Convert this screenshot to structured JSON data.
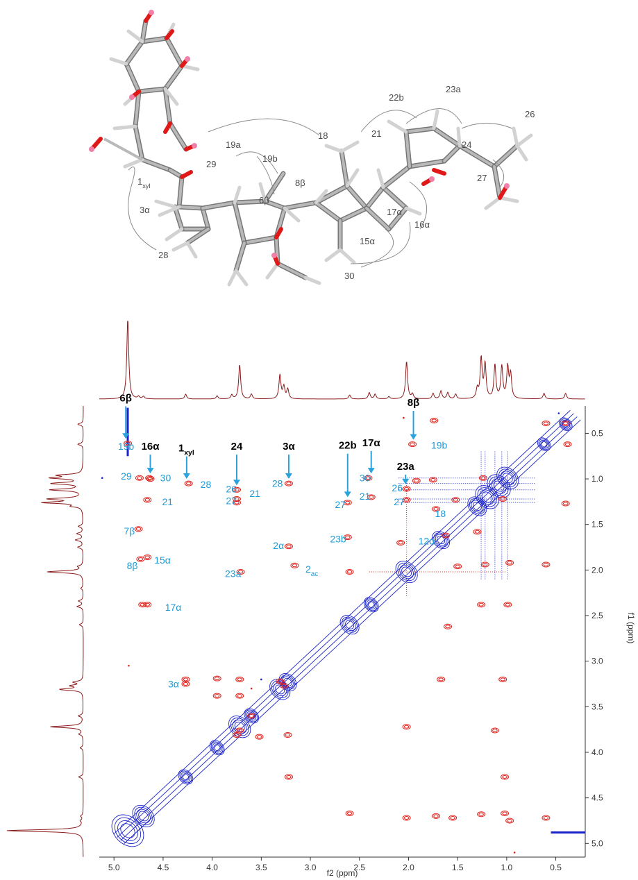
{
  "chart_data": {
    "type": "2D NMR NOESY/ROESY contour spectrum with 1D projections",
    "xlabel": "f2 (ppm)",
    "ylabel": "f1 (ppm)",
    "xlim": [
      5.15,
      0.2
    ],
    "ylim": [
      0.2,
      5.15
    ],
    "x_ticks": [
      "5.0",
      "4.5",
      "4.0",
      "3.5",
      "3.0",
      "2.5",
      "2.0",
      "1.5",
      "1.0",
      "0.5"
    ],
    "x_tick_values": [
      5.0,
      4.5,
      4.0,
      3.5,
      3.0,
      2.5,
      2.0,
      1.5,
      1.0,
      0.5
    ],
    "y_ticks": [
      "0.5",
      "1.0",
      "1.5",
      "2.0",
      "2.5",
      "3.0",
      "3.5",
      "4.0",
      "4.5",
      "5.0"
    ],
    "y_tick_values": [
      0.5,
      1.0,
      1.5,
      2.0,
      2.5,
      3.0,
      3.5,
      4.0,
      4.5,
      5.0
    ],
    "colors": {
      "positive": "#e0221c",
      "negative": "#1a23c8",
      "trace": "#8b1a1a",
      "annotation": "#1e9bd7",
      "arrow": "#2aa3dc",
      "molecule_label": "#4a4a4a"
    },
    "proton_spectrum_peaks": [
      {
        "ppm": 4.86,
        "h": 1.0
      },
      {
        "ppm": 4.75,
        "h": 0.03
      },
      {
        "ppm": 4.7,
        "h": 0.03
      },
      {
        "ppm": 4.27,
        "h": 0.06
      },
      {
        "ppm": 3.95,
        "h": 0.04
      },
      {
        "ppm": 3.8,
        "h": 0.05
      },
      {
        "ppm": 3.72,
        "h": 0.43
      },
      {
        "ppm": 3.6,
        "h": 0.06
      },
      {
        "ppm": 3.31,
        "h": 0.3
      },
      {
        "ppm": 3.27,
        "h": 0.15
      },
      {
        "ppm": 3.23,
        "h": 0.12
      },
      {
        "ppm": 2.6,
        "h": 0.05
      },
      {
        "ppm": 2.4,
        "h": 0.08
      },
      {
        "ppm": 2.34,
        "h": 0.06
      },
      {
        "ppm": 2.2,
        "h": 0.03
      },
      {
        "ppm": 2.02,
        "h": 0.47
      },
      {
        "ppm": 1.96,
        "h": 0.06
      },
      {
        "ppm": 1.75,
        "h": 0.07
      },
      {
        "ppm": 1.67,
        "h": 0.1
      },
      {
        "ppm": 1.6,
        "h": 0.08
      },
      {
        "ppm": 1.52,
        "h": 0.06
      },
      {
        "ppm": 1.3,
        "h": 0.12
      },
      {
        "ppm": 1.26,
        "h": 0.5
      },
      {
        "ppm": 1.22,
        "h": 0.43
      },
      {
        "ppm": 1.12,
        "h": 0.42
      },
      {
        "ppm": 1.05,
        "h": 0.4
      },
      {
        "ppm": 0.99,
        "h": 0.39
      },
      {
        "ppm": 0.96,
        "h": 0.3
      },
      {
        "ppm": 0.62,
        "h": 0.07
      },
      {
        "ppm": 0.4,
        "h": 0.07
      }
    ],
    "cross_peaks": [
      {
        "x": 4.64,
        "y": 0.99
      },
      {
        "x": 4.74,
        "y": 0.99
      },
      {
        "x": 4.63,
        "y": 1.0
      },
      {
        "x": 4.66,
        "y": 1.23
      },
      {
        "x": 4.75,
        "y": 1.55
      },
      {
        "x": 4.66,
        "y": 1.86
      },
      {
        "x": 4.73,
        "y": 1.88
      },
      {
        "x": 4.66,
        "y": 2.38
      },
      {
        "x": 4.71,
        "y": 2.38
      },
      {
        "x": 4.86,
        "y": 0.61
      },
      {
        "x": 4.24,
        "y": 1.05
      },
      {
        "x": 3.75,
        "y": 1.12
      },
      {
        "x": 3.75,
        "y": 1.22
      },
      {
        "x": 3.75,
        "y": 1.26
      },
      {
        "x": 3.71,
        "y": 2.02
      },
      {
        "x": 3.22,
        "y": 1.05
      },
      {
        "x": 3.22,
        "y": 1.74
      },
      {
        "x": 3.16,
        "y": 1.95
      },
      {
        "x": 4.27,
        "y": 3.2
      },
      {
        "x": 4.27,
        "y": 3.25
      },
      {
        "x": 3.95,
        "y": 3.19
      },
      {
        "x": 3.95,
        "y": 3.38
      },
      {
        "x": 3.72,
        "y": 3.2
      },
      {
        "x": 3.72,
        "y": 3.38
      },
      {
        "x": 3.6,
        "y": 3.6
      },
      {
        "x": 3.52,
        "y": 3.83
      },
      {
        "x": 3.31,
        "y": 3.22
      },
      {
        "x": 3.27,
        "y": 3.27
      },
      {
        "x": 3.23,
        "y": 3.81
      },
      {
        "x": 3.22,
        "y": 4.27
      },
      {
        "x": 2.62,
        "y": 1.26
      },
      {
        "x": 2.62,
        "y": 1.64
      },
      {
        "x": 2.6,
        "y": 2.02
      },
      {
        "x": 2.41,
        "y": 0.99
      },
      {
        "x": 2.38,
        "y": 1.2
      },
      {
        "x": 2.08,
        "y": 1.7
      },
      {
        "x": 2.6,
        "y": 4.67
      },
      {
        "x": 2.02,
        "y": 1.11
      },
      {
        "x": 2.02,
        "y": 1.23
      },
      {
        "x": 2.02,
        "y": 3.72
      },
      {
        "x": 1.96,
        "y": 0.62
      },
      {
        "x": 1.92,
        "y": 1.02
      },
      {
        "x": 1.75,
        "y": 1.01
      },
      {
        "x": 1.72,
        "y": 1.33
      },
      {
        "x": 1.67,
        "y": 3.2
      },
      {
        "x": 1.62,
        "y": 1.62
      },
      {
        "x": 1.6,
        "y": 2.62
      },
      {
        "x": 1.52,
        "y": 1.23
      },
      {
        "x": 1.5,
        "y": 1.96
      },
      {
        "x": 1.3,
        "y": 1.58
      },
      {
        "x": 1.26,
        "y": 2.38
      },
      {
        "x": 1.22,
        "y": 1.94
      },
      {
        "x": 1.12,
        "y": 3.76
      },
      {
        "x": 1.04,
        "y": 3.2
      },
      {
        "x": 1.02,
        "y": 4.27
      },
      {
        "x": 0.99,
        "y": 2.38
      },
      {
        "x": 0.97,
        "y": 1.92
      },
      {
        "x": 0.6,
        "y": 1.94
      },
      {
        "x": 0.4,
        "y": 0.39
      },
      {
        "x": 0.38,
        "y": 0.62
      },
      {
        "x": 0.4,
        "y": 1.27
      },
      {
        "x": 0.6,
        "y": 0.39
      },
      {
        "x": 1.74,
        "y": 0.36
      },
      {
        "x": 1.02,
        "y": 4.67
      },
      {
        "x": 2.02,
        "y": 4.72
      },
      {
        "x": 1.55,
        "y": 4.72
      },
      {
        "x": 1.72,
        "y": 4.7
      },
      {
        "x": 1.26,
        "y": 4.68
      },
      {
        "x": 0.6,
        "y": 4.72
      },
      {
        "x": 0.97,
        "y": 4.75
      },
      {
        "x": 3.75,
        "y": 3.81
      },
      {
        "x": 3.72,
        "y": 3.76
      },
      {
        "x": 1.24,
        "y": 0.99
      },
      {
        "x": 1.04,
        "y": 1.22
      }
    ],
    "diagonal_peaks": [
      {
        "ppm": 4.86,
        "s": 2.2
      },
      {
        "ppm": 4.7,
        "s": 1.5
      },
      {
        "ppm": 4.27,
        "s": 1.0
      },
      {
        "ppm": 3.95,
        "s": 1.0
      },
      {
        "ppm": 3.72,
        "s": 1.5
      },
      {
        "ppm": 3.6,
        "s": 1.0
      },
      {
        "ppm": 3.31,
        "s": 1.4
      },
      {
        "ppm": 3.23,
        "s": 1.2
      },
      {
        "ppm": 2.6,
        "s": 1.3
      },
      {
        "ppm": 2.38,
        "s": 1.0
      },
      {
        "ppm": 2.02,
        "s": 1.5
      },
      {
        "ppm": 1.67,
        "s": 1.2
      },
      {
        "ppm": 1.3,
        "s": 1.3
      },
      {
        "ppm": 1.2,
        "s": 1.6
      },
      {
        "ppm": 1.08,
        "s": 1.6
      },
      {
        "ppm": 0.99,
        "s": 1.5
      },
      {
        "ppm": 0.62,
        "s": 0.9
      },
      {
        "ppm": 0.4,
        "s": 0.9
      }
    ],
    "peak_labels": [
      {
        "text": "19b",
        "x": 4.96,
        "y": 0.64
      },
      {
        "text": "29",
        "x": 4.93,
        "y": 0.97
      },
      {
        "text": "30",
        "x": 4.53,
        "y": 0.99
      },
      {
        "text": "21",
        "x": 4.51,
        "y": 1.25
      },
      {
        "text": "7β",
        "x": 4.9,
        "y": 1.57
      },
      {
        "text": "15α",
        "x": 4.59,
        "y": 1.89
      },
      {
        "text": "8β",
        "x": 4.87,
        "y": 1.95
      },
      {
        "text": "17α",
        "x": 4.48,
        "y": 2.41
      },
      {
        "text": "28",
        "x": 4.12,
        "y": 1.06
      },
      {
        "text": "26",
        "x": 3.86,
        "y": 1.11
      },
      {
        "text": "21",
        "x": 3.62,
        "y": 1.16
      },
      {
        "text": "27",
        "x": 3.86,
        "y": 1.24
      },
      {
        "text": "23a",
        "x": 3.87,
        "y": 2.04
      },
      {
        "text": "28",
        "x": 3.39,
        "y": 1.05
      },
      {
        "text": "2α",
        "x": 3.38,
        "y": 1.73
      },
      {
        "text": "3α",
        "x": 4.45,
        "y": 3.25
      },
      {
        "text": "27",
        "x": 2.75,
        "y": 1.28
      },
      {
        "text": "23b",
        "x": 2.8,
        "y": 1.66
      },
      {
        "text": "30",
        "x": 2.5,
        "y": 0.99
      },
      {
        "text": "21",
        "x": 2.5,
        "y": 1.19
      },
      {
        "text": "12α",
        "x": 1.9,
        "y": 1.68
      },
      {
        "text": "26",
        "x": 2.17,
        "y": 1.1
      },
      {
        "text": "27",
        "x": 2.15,
        "y": 1.25
      },
      {
        "text": "18",
        "x": 1.73,
        "y": 1.38
      },
      {
        "text": "19b",
        "x": 1.77,
        "y": 0.63
      }
    ],
    "subscript_labels": [
      {
        "text": "2",
        "sub": "ac",
        "x": 3.05,
        "y": 1.99
      }
    ],
    "arrow_labels": [
      {
        "text": "6β",
        "x": 4.88,
        "y_label": 0.15,
        "y_to": 0.56
      },
      {
        "text": "16α",
        "x": 4.63,
        "y_label": 0.68,
        "y_to": 0.94
      },
      {
        "text": "24",
        "x": 3.75,
        "y_label": 0.68,
        "y_to": 1.07
      },
      {
        "text": "3α",
        "x": 3.22,
        "y_label": 0.68,
        "y_to": 1.0
      },
      {
        "text": "22b",
        "x": 2.62,
        "y_label": 0.67,
        "y_to": 1.2
      },
      {
        "text": "17α",
        "x": 2.38,
        "y_label": 0.64,
        "y_to": 0.94
      },
      {
        "text": "23a",
        "x": 2.03,
        "y_label": 0.9,
        "y_to": 1.06
      },
      {
        "text": "8β",
        "x": 1.95,
        "y_label": 0.2,
        "y_to": 0.57
      }
    ],
    "arrow_subscript_labels": [
      {
        "text": "1",
        "sub": "xyl",
        "x": 4.26,
        "y_label": 0.7,
        "y_to": 1.0
      }
    ]
  },
  "molecule": {
    "labels": [
      {
        "text": "22b"
      },
      {
        "text": "23a"
      },
      {
        "text": "26"
      },
      {
        "text": "21"
      },
      {
        "text": "24"
      },
      {
        "text": "18"
      },
      {
        "text": "19a"
      },
      {
        "text": "19b"
      },
      {
        "text": "29"
      },
      {
        "text": "8β"
      },
      {
        "text": "6β"
      },
      {
        "text": "27"
      },
      {
        "text": "3α"
      },
      {
        "text": "17α"
      },
      {
        "text": "16α"
      },
      {
        "text": "15α"
      },
      {
        "text": "28"
      },
      {
        "text": "30"
      }
    ],
    "xyl_label": {
      "text": "1",
      "sub": "xyl"
    }
  }
}
